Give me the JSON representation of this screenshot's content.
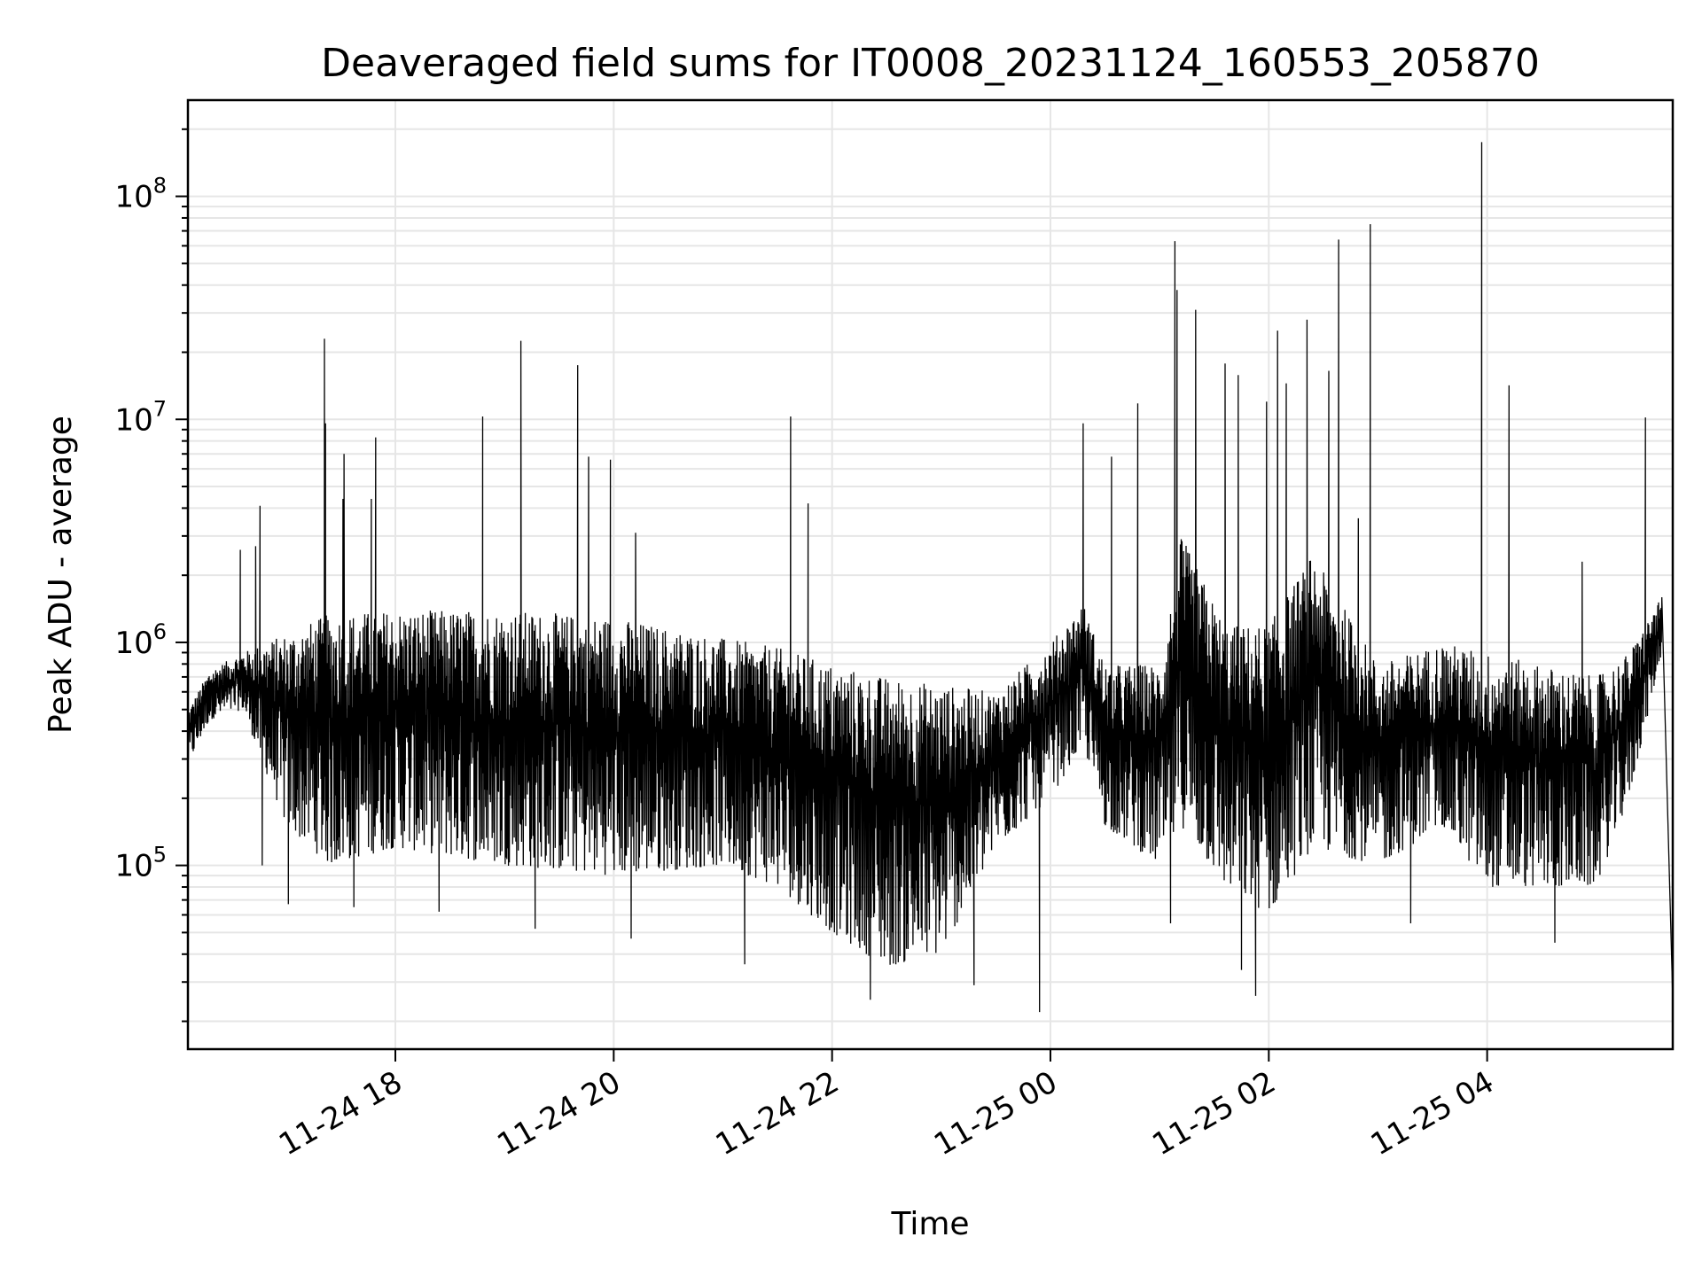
{
  "chart_data": {
    "type": "line",
    "title": "Deaveraged field sums for IT0008_20231124_160553_205870",
    "xlabel": "Time",
    "ylabel": "Peak ADU - average",
    "x_start": "2023-11-24 16:06",
    "x_end": "2023-11-25 05:42",
    "xlim_hours": [
      16.1,
      29.7
    ],
    "xticks": [
      {
        "hour": 18,
        "label": "11-24 18"
      },
      {
        "hour": 20,
        "label": "11-24 20"
      },
      {
        "hour": 22,
        "label": "11-24 22"
      },
      {
        "hour": 24,
        "label": "11-25 00"
      },
      {
        "hour": 26,
        "label": "11-25 02"
      },
      {
        "hour": 28,
        "label": "11-25 04"
      }
    ],
    "yscale": "log",
    "ylim": [
      15000,
      270000000
    ],
    "yticks": [
      {
        "value": 100000,
        "base": "10",
        "exp": "5"
      },
      {
        "value": 1000000,
        "base": "10",
        "exp": "6"
      },
      {
        "value": 10000000,
        "base": "10",
        "exp": "7"
      },
      {
        "value": 100000000,
        "base": "10",
        "exp": "8"
      }
    ],
    "grid": true,
    "series": [
      {
        "color": "#000000",
        "envelope": [
          {
            "t": 16.1,
            "low": 280000,
            "high": 500000
          },
          {
            "t": 16.3,
            "low": 450000,
            "high": 750000
          },
          {
            "t": 16.6,
            "low": 500000,
            "high": 900000
          },
          {
            "t": 17.0,
            "low": 150000,
            "high": 1100000
          },
          {
            "t": 17.4,
            "low": 100000,
            "high": 1350000
          },
          {
            "t": 18.0,
            "low": 120000,
            "high": 1400000
          },
          {
            "t": 19.0,
            "low": 100000,
            "high": 1400000
          },
          {
            "t": 20.0,
            "low": 90000,
            "high": 1300000
          },
          {
            "t": 21.0,
            "low": 100000,
            "high": 1050000
          },
          {
            "t": 21.5,
            "low": 80000,
            "high": 950000
          },
          {
            "t": 22.0,
            "low": 50000,
            "high": 800000
          },
          {
            "t": 22.5,
            "low": 35000,
            "high": 700000
          },
          {
            "t": 23.0,
            "low": 40000,
            "high": 650000
          },
          {
            "t": 23.5,
            "low": 120000,
            "high": 600000
          },
          {
            "t": 24.0,
            "low": 200000,
            "high": 1000000
          },
          {
            "t": 24.3,
            "low": 350000,
            "high": 1500000
          },
          {
            "t": 24.5,
            "low": 150000,
            "high": 800000
          },
          {
            "t": 25.0,
            "low": 100000,
            "high": 800000
          },
          {
            "t": 25.2,
            "low": 150000,
            "high": 3000000
          },
          {
            "t": 25.6,
            "low": 80000,
            "high": 1200000
          },
          {
            "t": 26.0,
            "low": 60000,
            "high": 1200000
          },
          {
            "t": 26.4,
            "low": 120000,
            "high": 2500000
          },
          {
            "t": 27.0,
            "low": 100000,
            "high": 800000
          },
          {
            "t": 27.6,
            "low": 150000,
            "high": 1000000
          },
          {
            "t": 28.0,
            "low": 80000,
            "high": 900000
          },
          {
            "t": 29.0,
            "low": 80000,
            "high": 700000
          },
          {
            "t": 29.3,
            "low": 200000,
            "high": 900000
          },
          {
            "t": 29.6,
            "low": 900000,
            "high": 1600000
          }
        ],
        "spikes": [
          {
            "t": 16.58,
            "value": 2600000
          },
          {
            "t": 16.72,
            "value": 2700000
          },
          {
            "t": 16.76,
            "value": 4100000
          },
          {
            "t": 17.35,
            "value": 23000000
          },
          {
            "t": 17.36,
            "value": 9600000
          },
          {
            "t": 17.53,
            "value": 7000000
          },
          {
            "t": 17.52,
            "value": 4400000
          },
          {
            "t": 17.78,
            "value": 4400000
          },
          {
            "t": 17.82,
            "value": 8300000
          },
          {
            "t": 18.8,
            "value": 10300000
          },
          {
            "t": 19.15,
            "value": 22500000
          },
          {
            "t": 19.67,
            "value": 17500000
          },
          {
            "t": 19.77,
            "value": 6800000
          },
          {
            "t": 19.97,
            "value": 6600000
          },
          {
            "t": 20.2,
            "value": 3100000
          },
          {
            "t": 21.62,
            "value": 10300000
          },
          {
            "t": 21.78,
            "value": 4200000
          },
          {
            "t": 24.3,
            "value": 9600000
          },
          {
            "t": 24.56,
            "value": 6800000
          },
          {
            "t": 24.8,
            "value": 11800000
          },
          {
            "t": 25.14,
            "value": 63000000
          },
          {
            "t": 25.16,
            "value": 38000000
          },
          {
            "t": 25.33,
            "value": 31000000
          },
          {
            "t": 25.6,
            "value": 17800000
          },
          {
            "t": 25.72,
            "value": 15800000
          },
          {
            "t": 25.98,
            "value": 12000000
          },
          {
            "t": 26.08,
            "value": 25000000
          },
          {
            "t": 26.16,
            "value": 14500000
          },
          {
            "t": 26.35,
            "value": 28000000
          },
          {
            "t": 26.55,
            "value": 16500000
          },
          {
            "t": 26.64,
            "value": 64000000
          },
          {
            "t": 26.82,
            "value": 3600000
          },
          {
            "t": 26.93,
            "value": 75000000
          },
          {
            "t": 27.95,
            "value": 175000000
          },
          {
            "t": 28.2,
            "value": 14200000
          },
          {
            "t": 28.87,
            "value": 2300000
          },
          {
            "t": 29.45,
            "value": 10200000
          }
        ],
        "dips": [
          {
            "t": 16.78,
            "value": 100000
          },
          {
            "t": 17.02,
            "value": 67000.0
          },
          {
            "t": 17.62,
            "value": 65000
          },
          {
            "t": 18.4,
            "value": 62000
          },
          {
            "t": 19.28,
            "value": 52000
          },
          {
            "t": 20.16,
            "value": 47000
          },
          {
            "t": 21.2,
            "value": 36000
          },
          {
            "t": 22.35,
            "value": 25000
          },
          {
            "t": 23.3,
            "value": 29000
          },
          {
            "t": 23.9,
            "value": 22000
          },
          {
            "t": 25.1,
            "value": 55000
          },
          {
            "t": 25.75,
            "value": 34000
          },
          {
            "t": 25.88,
            "value": 26000
          },
          {
            "t": 27.3,
            "value": 55000
          },
          {
            "t": 28.62,
            "value": 45000
          }
        ],
        "end_value": 25000
      }
    ]
  }
}
